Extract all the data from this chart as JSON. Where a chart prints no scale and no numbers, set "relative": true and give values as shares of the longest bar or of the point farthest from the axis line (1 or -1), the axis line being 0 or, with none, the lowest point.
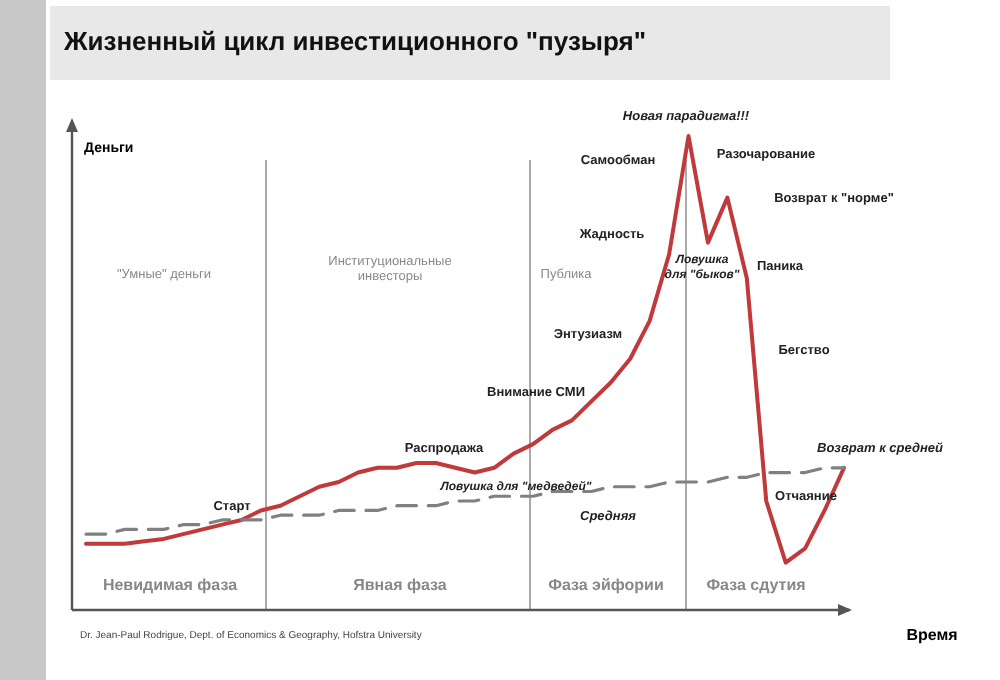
{
  "chart_data": {
    "type": "line",
    "title": "Жизненный цикл инвестиционного \"пузыря\"",
    "xlabel": "Время",
    "ylabel": "Деньги",
    "relative": true,
    "categories": [
      null,
      null,
      null,
      null,
      null,
      null,
      null,
      null,
      null,
      null,
      null,
      null,
      null,
      null,
      null,
      null,
      null,
      null,
      null,
      null,
      null,
      null,
      null,
      null,
      null,
      null,
      null,
      null,
      null,
      null,
      null,
      null,
      null,
      null,
      null,
      null,
      null,
      null,
      null,
      null
    ],
    "series": [
      {
        "color": "#c0393b",
        "line_style": "solid",
        "values": [
          0.14,
          0.14,
          0.14,
          0.145,
          0.15,
          0.16,
          0.17,
          0.18,
          0.19,
          0.21,
          0.22,
          0.24,
          0.26,
          0.27,
          0.29,
          0.3,
          0.3,
          0.31,
          0.31,
          0.3,
          0.29,
          0.3,
          0.33,
          0.35,
          0.38,
          0.4,
          0.44,
          0.48,
          0.53,
          0.61,
          0.75,
          1,
          0.775,
          0.87,
          0.7,
          0.23,
          0.1,
          0.13,
          0.21,
          0.3
        ]
      },
      {
        "color": "#808080",
        "line_style": "dashed",
        "values": [
          0.16,
          0.16,
          0.17,
          0.17,
          0.17,
          0.18,
          0.18,
          0.19,
          0.19,
          0.19,
          0.2,
          0.2,
          0.2,
          0.21,
          0.21,
          0.21,
          0.22,
          0.22,
          0.22,
          0.23,
          0.23,
          0.24,
          0.24,
          0.24,
          0.25,
          0.25,
          0.25,
          0.26,
          0.26,
          0.26,
          0.27,
          0.27,
          0.27,
          0.28,
          0.28,
          0.29,
          0.29,
          0.29,
          0.3,
          0.3
        ]
      }
    ],
    "annotations": [
      "\"Умные\" деньги",
      "Институциональные\nинвесторы",
      "Публика",
      "Старт",
      "Распродажа",
      "Ловушка для \"медведей\"",
      "Средняя",
      "Внимание СМИ",
      "Энтузиазм",
      "Жадность",
      "Самообман",
      "Новая парадигма!!!",
      "Разочарование",
      "Возврат к \"норме\"",
      "Ловушка\nдля \"быков\"",
      "Паника",
      "Бегство",
      "Возврат к средней",
      "Отчаяние",
      "Невидимая фаза",
      "Явная фаза",
      "Фаза эйфории",
      "Фаза сдутия",
      "Dr. Jean-Paul Rodrigue, Dept. of Economics & Geography, Hofstra University"
    ]
  }
}
